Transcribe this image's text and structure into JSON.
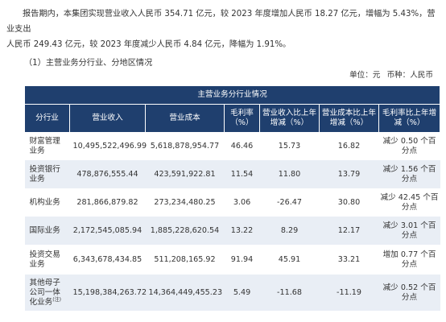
{
  "intro": {
    "line1": "报告期内，本集团实现营业收入人民币 354.71 亿元，较 2023 年度增加人民币 18.27 亿元，增幅为 5.43%，营业支出",
    "line2": "人民币 249.43 亿元，较 2023 年度减少人民币 4.84 亿元，降幅为 1.91%。"
  },
  "section_title": "（1）主营业务分行业、分地区情况",
  "unit": {
    "unit_label": "单位：元",
    "currency_label": "币种：人民币"
  },
  "table": {
    "caption": "主营业务分行业情况",
    "headers": [
      "分行业",
      "营业收入",
      "营业成本",
      "毛利率（%）",
      "营业收入比上年增减（%）",
      "营业成本比上年增减（%）",
      "毛利率比上年增减（%）"
    ],
    "rows": [
      {
        "segment": "财富管理业务",
        "revenue": "10,495,522,496.99",
        "cost": "5,618,878,954.77",
        "margin": "46.46",
        "revenue_change": "15.73",
        "cost_change": "16.82",
        "margin_change": "减少 0.50 个百分点"
      },
      {
        "segment": "投资银行业务",
        "revenue": "478,876,555.44",
        "cost": "423,591,922.81",
        "margin": "11.54",
        "revenue_change": "11.80",
        "cost_change": "13.79",
        "margin_change": "减少 1.56 个百分点"
      },
      {
        "segment": "机构业务",
        "revenue": "281,866,879.82",
        "cost": "273,234,480.25",
        "margin": "3.06",
        "revenue_change": "-26.47",
        "cost_change": "30.80",
        "margin_change": "减少 42.45 个百分点"
      },
      {
        "segment": "国际业务",
        "revenue": "2,172,545,085.94",
        "cost": "1,885,228,620.54",
        "margin": "13.22",
        "revenue_change": "8.29",
        "cost_change": "12.17",
        "margin_change": "减少 3.01 个百分点"
      },
      {
        "segment": "投资交易业务",
        "revenue": "6,343,678,434.85",
        "cost": "511,208,165.92",
        "margin": "91.94",
        "revenue_change": "45.91",
        "cost_change": "33.21",
        "margin_change": "增加 0.77 个百分点"
      },
      {
        "segment": "其他母子公司一体化业务",
        "segment_note": "(注)",
        "revenue": "15,198,384,263.72",
        "cost": "14,364,449,455.23",
        "margin": "5.49",
        "revenue_change": "-11.68",
        "cost_change": "-11.19",
        "margin_change": "减少 0.52 个百分点"
      }
    ]
  }
}
